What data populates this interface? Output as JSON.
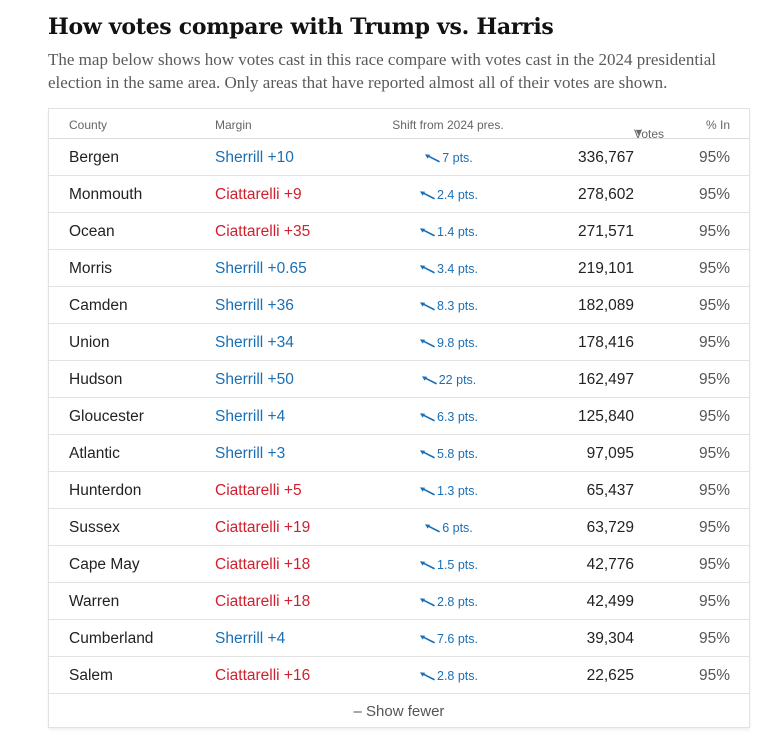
{
  "headline": "How votes compare with Trump vs. Harris",
  "intro": "The map below shows how votes cast in this race compare with votes cast in the 2024 presidential election in the same area. Only areas that have reported almost all of their votes are shown.",
  "table": {
    "headers": {
      "county": "County",
      "margin": "Margin",
      "shift": "Shift from 2024 pres.",
      "sort_arrow": "▼",
      "votes": "Votes",
      "pct_in": "% In"
    },
    "colors": {
      "dem": "#1a6fb5",
      "rep": "#d0202e"
    },
    "rows": [
      {
        "county": "Bergen",
        "margin": "Sherrill +10",
        "party": "dem",
        "shift": "7 pts.",
        "votes": "336,767",
        "pct_in": "95%"
      },
      {
        "county": "Monmouth",
        "margin": "Ciattarelli +9",
        "party": "rep",
        "shift": "2.4 pts.",
        "votes": "278,602",
        "pct_in": "95%"
      },
      {
        "county": "Ocean",
        "margin": "Ciattarelli +35",
        "party": "rep",
        "shift": "1.4 pts.",
        "votes": "271,571",
        "pct_in": "95%"
      },
      {
        "county": "Morris",
        "margin": "Sherrill +0.65",
        "party": "dem",
        "shift": "3.4 pts.",
        "votes": "219,101",
        "pct_in": "95%"
      },
      {
        "county": "Camden",
        "margin": "Sherrill +36",
        "party": "dem",
        "shift": "8.3 pts.",
        "votes": "182,089",
        "pct_in": "95%"
      },
      {
        "county": "Union",
        "margin": "Sherrill +34",
        "party": "dem",
        "shift": "9.8 pts.",
        "votes": "178,416",
        "pct_in": "95%"
      },
      {
        "county": "Hudson",
        "margin": "Sherrill +50",
        "party": "dem",
        "shift": "22 pts.",
        "votes": "162,497",
        "pct_in": "95%"
      },
      {
        "county": "Gloucester",
        "margin": "Sherrill +4",
        "party": "dem",
        "shift": "6.3 pts.",
        "votes": "125,840",
        "pct_in": "95%"
      },
      {
        "county": "Atlantic",
        "margin": "Sherrill +3",
        "party": "dem",
        "shift": "5.8 pts.",
        "votes": "97,095",
        "pct_in": "95%"
      },
      {
        "county": "Hunterdon",
        "margin": "Ciattarelli +5",
        "party": "rep",
        "shift": "1.3 pts.",
        "votes": "65,437",
        "pct_in": "95%"
      },
      {
        "county": "Sussex",
        "margin": "Ciattarelli +19",
        "party": "rep",
        "shift": "6 pts.",
        "votes": "63,729",
        "pct_in": "95%"
      },
      {
        "county": "Cape May",
        "margin": "Ciattarelli +18",
        "party": "rep",
        "shift": "1.5 pts.",
        "votes": "42,776",
        "pct_in": "95%"
      },
      {
        "county": "Warren",
        "margin": "Ciattarelli +18",
        "party": "rep",
        "shift": "2.8 pts.",
        "votes": "42,499",
        "pct_in": "95%"
      },
      {
        "county": "Cumberland",
        "margin": "Sherrill +4",
        "party": "dem",
        "shift": "7.6 pts.",
        "votes": "39,304",
        "pct_in": "95%"
      },
      {
        "county": "Salem",
        "margin": "Ciattarelli +16",
        "party": "rep",
        "shift": "2.8 pts.",
        "votes": "22,625",
        "pct_in": "95%"
      }
    ],
    "show_fewer": "– Show fewer"
  }
}
